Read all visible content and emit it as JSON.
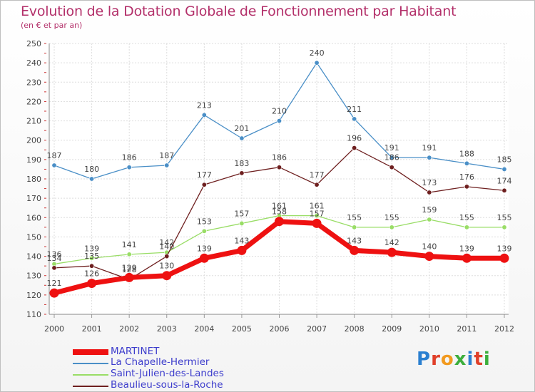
{
  "title": "Evolution de la Dotation Globale de Fonctionnement par Habitant",
  "subtitle": "(en € et par an)",
  "logo": "Proxiti",
  "chart_data": {
    "type": "line",
    "x": [
      "2000",
      "2001",
      "2002",
      "2003",
      "2004",
      "2005",
      "2006",
      "2007",
      "2008",
      "2009",
      "2010",
      "2011",
      "2012"
    ],
    "ylim": [
      110,
      250
    ],
    "yticks": [
      110,
      120,
      130,
      140,
      150,
      160,
      170,
      180,
      190,
      200,
      210,
      220,
      230,
      240,
      250
    ],
    "grid": true,
    "legend_placement": "bottom-left",
    "series": [
      {
        "name": "MARTINET",
        "color": "#ee1111",
        "values": [
          121,
          126,
          129,
          130,
          139,
          143,
          158,
          157,
          143,
          142,
          140,
          139,
          139
        ]
      },
      {
        "name": "La Chapelle-Hermier",
        "color": "#4a8fc7",
        "values": [
          187,
          180,
          186,
          187,
          213,
          201,
          210,
          240,
          211,
          191,
          191,
          188,
          185
        ]
      },
      {
        "name": "Saint-Julien-des-Landes",
        "color": "#99dd66",
        "values": [
          136,
          139,
          141,
          142,
          153,
          157,
          161,
          161,
          155,
          155,
          159,
          155,
          155
        ]
      },
      {
        "name": "Beaulieu-sous-la-Roche",
        "color": "#6e1f1f",
        "values": [
          134,
          135,
          128,
          140,
          177,
          183,
          186,
          177,
          196,
          186,
          173,
          176,
          174
        ]
      }
    ]
  }
}
